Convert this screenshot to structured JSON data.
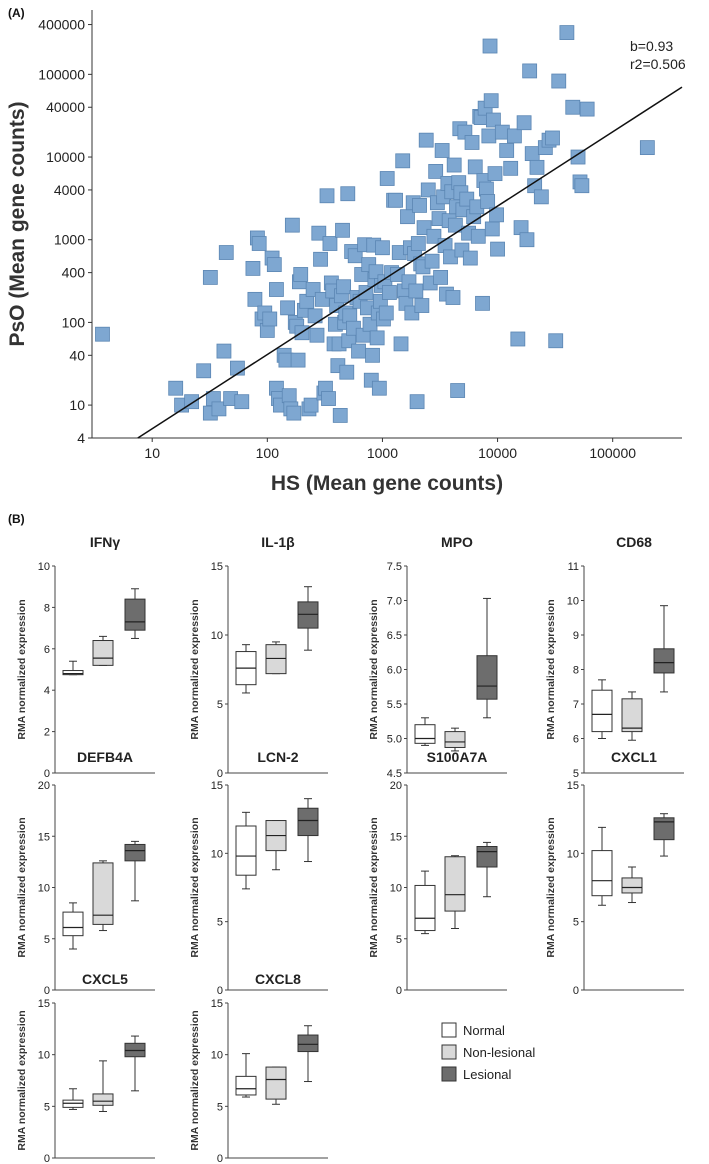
{
  "panel_a_label": "(A)",
  "panel_b_label": "(B)",
  "chart_data": [
    {
      "type": "scatter",
      "xlabel": "HS (Mean gene counts)",
      "ylabel": "PsO (Mean gene counts)",
      "xscale": "log",
      "yscale": "log",
      "xlim": [
        3,
        400000
      ],
      "ylim": [
        4,
        600000
      ],
      "xticks": [
        10,
        100,
        1000,
        10000,
        100000
      ],
      "xtick_labels": [
        "10",
        "100",
        "1000",
        "10000",
        "100000"
      ],
      "yticks": [
        4,
        10,
        40,
        100,
        400,
        1000,
        4000,
        10000,
        40000,
        100000,
        400000
      ],
      "ytick_labels": [
        "4",
        "10",
        "40",
        "100",
        "400",
        "1000",
        "4000",
        "10000",
        "40000",
        "100000",
        "400000"
      ],
      "fit_line": {
        "slope": 0.93,
        "x_start": 7.5,
        "y_start": 4,
        "x_end": 400000,
        "y_end": 70000
      },
      "annotation_lines": [
        "b=0.93",
        "r2=0.506"
      ],
      "marker_color": "#7ea7d1",
      "marker_edge": "#5b86b3",
      "points": [
        [
          3.7,
          72
        ],
        [
          16,
          16
        ],
        [
          18,
          10
        ],
        [
          22,
          11
        ],
        [
          28,
          26
        ],
        [
          32,
          8
        ],
        [
          34,
          12
        ],
        [
          38,
          9
        ],
        [
          42,
          45
        ],
        [
          44,
          700
        ],
        [
          48,
          12
        ],
        [
          55,
          28
        ],
        [
          60,
          11
        ],
        [
          32,
          350
        ],
        [
          75,
          450
        ],
        [
          78,
          190
        ],
        [
          82,
          1050
        ],
        [
          85,
          900
        ],
        [
          90,
          110
        ],
        [
          95,
          130
        ],
        [
          100,
          80
        ],
        [
          105,
          110
        ],
        [
          110,
          600
        ],
        [
          115,
          500
        ],
        [
          120,
          250
        ],
        [
          120,
          16
        ],
        [
          125,
          12
        ],
        [
          130,
          10
        ],
        [
          140,
          40
        ],
        [
          145,
          35
        ],
        [
          150,
          150
        ],
        [
          155,
          13
        ],
        [
          160,
          9
        ],
        [
          165,
          1500
        ],
        [
          170,
          8
        ],
        [
          175,
          100
        ],
        [
          180,
          90
        ],
        [
          185,
          35
        ],
        [
          190,
          310
        ],
        [
          195,
          380
        ],
        [
          200,
          75
        ],
        [
          210,
          140
        ],
        [
          220,
          180
        ],
        [
          230,
          9
        ],
        [
          240,
          10
        ],
        [
          250,
          250
        ],
        [
          260,
          120
        ],
        [
          270,
          70
        ],
        [
          280,
          1200
        ],
        [
          290,
          580
        ],
        [
          300,
          190
        ],
        [
          310,
          14
        ],
        [
          320,
          16
        ],
        [
          330,
          3400
        ],
        [
          340,
          12
        ],
        [
          350,
          900
        ],
        [
          360,
          300
        ],
        [
          370,
          240
        ],
        [
          380,
          55
        ],
        [
          390,
          95
        ],
        [
          400,
          160
        ],
        [
          410,
          30
        ],
        [
          420,
          55
        ],
        [
          430,
          7.5
        ],
        [
          440,
          210
        ],
        [
          450,
          1300
        ],
        [
          460,
          270
        ],
        [
          470,
          100
        ],
        [
          480,
          130
        ],
        [
          490,
          25
        ],
        [
          500,
          3600
        ],
        [
          510,
          60
        ],
        [
          520,
          120
        ],
        [
          540,
          720
        ],
        [
          560,
          85
        ],
        [
          580,
          640
        ],
        [
          600,
          200
        ],
        [
          620,
          45
        ],
        [
          640,
          180
        ],
        [
          660,
          380
        ],
        [
          680,
          70
        ],
        [
          700,
          870
        ],
        [
          720,
          230
        ],
        [
          740,
          150
        ],
        [
          760,
          500
        ],
        [
          780,
          95
        ],
        [
          800,
          20
        ],
        [
          820,
          40
        ],
        [
          840,
          860
        ],
        [
          860,
          330
        ],
        [
          880,
          410
        ],
        [
          900,
          65
        ],
        [
          920,
          130
        ],
        [
          940,
          16
        ],
        [
          960,
          180
        ],
        [
          980,
          280
        ],
        [
          1000,
          800
        ],
        [
          1020,
          110
        ],
        [
          1050,
          310
        ],
        [
          1080,
          130
        ],
        [
          1100,
          5500
        ],
        [
          1150,
          230
        ],
        [
          1200,
          400
        ],
        [
          1250,
          3000
        ],
        [
          1300,
          3000
        ],
        [
          1350,
          380
        ],
        [
          1400,
          700
        ],
        [
          1450,
          55
        ],
        [
          1500,
          9000
        ],
        [
          1550,
          240
        ],
        [
          1600,
          170
        ],
        [
          1650,
          1900
        ],
        [
          1700,
          310
        ],
        [
          1750,
          800
        ],
        [
          1800,
          130
        ],
        [
          1850,
          2800
        ],
        [
          1900,
          680
        ],
        [
          1950,
          240
        ],
        [
          2000,
          11
        ],
        [
          2050,
          900
        ],
        [
          2100,
          2600
        ],
        [
          2150,
          510
        ],
        [
          2200,
          160
        ],
        [
          2250,
          470
        ],
        [
          2300,
          1400
        ],
        [
          2400,
          16000
        ],
        [
          2500,
          4000
        ],
        [
          2600,
          300
        ],
        [
          2700,
          550
        ],
        [
          2800,
          1100
        ],
        [
          2900,
          6700
        ],
        [
          3000,
          2800
        ],
        [
          3100,
          1800
        ],
        [
          3200,
          350
        ],
        [
          3300,
          12000
        ],
        [
          3400,
          3300
        ],
        [
          3500,
          850
        ],
        [
          3600,
          220
        ],
        [
          3700,
          4800
        ],
        [
          3800,
          1700
        ],
        [
          3900,
          620
        ],
        [
          4000,
          3800
        ],
        [
          4100,
          200
        ],
        [
          4200,
          8000
        ],
        [
          4300,
          1500
        ],
        [
          4400,
          2500
        ],
        [
          4500,
          15
        ],
        [
          4600,
          4900
        ],
        [
          4700,
          22000
        ],
        [
          4800,
          3700
        ],
        [
          4900,
          750
        ],
        [
          5000,
          2300
        ],
        [
          5200,
          20000
        ],
        [
          5400,
          3100
        ],
        [
          5600,
          1200
        ],
        [
          5800,
          600
        ],
        [
          6000,
          15000
        ],
        [
          6200,
          1900
        ],
        [
          6400,
          7600
        ],
        [
          6600,
          2500
        ],
        [
          6800,
          1100
        ],
        [
          7000,
          31000
        ],
        [
          7200,
          30000
        ],
        [
          7400,
          170
        ],
        [
          7600,
          5200
        ],
        [
          7800,
          39000
        ],
        [
          8000,
          4100
        ],
        [
          8200,
          2900
        ],
        [
          8400,
          18000
        ],
        [
          8600,
          220000
        ],
        [
          8800,
          48000
        ],
        [
          9000,
          1350
        ],
        [
          9200,
          28000
        ],
        [
          9500,
          6300
        ],
        [
          9800,
          2000
        ],
        [
          10000,
          770
        ],
        [
          11000,
          20000
        ],
        [
          12000,
          12000
        ],
        [
          13000,
          7300
        ],
        [
          14000,
          18000
        ],
        [
          15000,
          63
        ],
        [
          16000,
          1400
        ],
        [
          17000,
          26000
        ],
        [
          18000,
          1000
        ],
        [
          19000,
          110000
        ],
        [
          20000,
          11000
        ],
        [
          21000,
          4500
        ],
        [
          22000,
          7500
        ],
        [
          24000,
          3300
        ],
        [
          26000,
          13000
        ],
        [
          28000,
          16000
        ],
        [
          30000,
          17000
        ],
        [
          32000,
          60
        ],
        [
          34000,
          83000
        ],
        [
          40000,
          320000
        ],
        [
          45000,
          40000
        ],
        [
          50000,
          10000
        ],
        [
          52000,
          5000
        ],
        [
          54000,
          4500
        ],
        [
          60000,
          38000
        ],
        [
          200000,
          13000
        ]
      ]
    },
    {
      "type": "box",
      "title": "IFNγ",
      "ylabel": "RMA normalized expression",
      "ylim": [
        0,
        10
      ],
      "yticks": [
        0,
        2,
        4,
        6,
        8,
        10
      ],
      "boxes": [
        {
          "group": "Normal",
          "min": 4.75,
          "q1": 4.75,
          "median": 4.8,
          "q3": 4.95,
          "max": 5.4
        },
        {
          "group": "Non-lesional",
          "min": 5.2,
          "q1": 5.2,
          "median": 5.55,
          "q3": 6.4,
          "max": 6.6
        },
        {
          "group": "Lesional",
          "min": 6.5,
          "q1": 6.9,
          "median": 7.3,
          "q3": 8.4,
          "max": 8.9
        }
      ]
    },
    {
      "type": "box",
      "title": "IL-1β",
      "ylabel": "RMA normalized expression",
      "ylim": [
        0,
        15
      ],
      "yticks": [
        0,
        5,
        10,
        15
      ],
      "boxes": [
        {
          "group": "Normal",
          "min": 5.8,
          "q1": 6.4,
          "median": 7.6,
          "q3": 8.8,
          "max": 9.3
        },
        {
          "group": "Non-lesional",
          "min": 7.2,
          "q1": 7.2,
          "median": 8.3,
          "q3": 9.3,
          "max": 9.5
        },
        {
          "group": "Lesional",
          "min": 8.9,
          "q1": 10.5,
          "median": 11.5,
          "q3": 12.4,
          "max": 13.5
        }
      ]
    },
    {
      "type": "box",
      "title": "MPO",
      "ylabel": "RMA normalized expression",
      "ylim": [
        4.5,
        7.5
      ],
      "yticks": [
        4.5,
        5.0,
        5.5,
        6.0,
        6.5,
        7.0,
        7.5
      ],
      "ytick_labels": [
        "4.5",
        "5.0",
        "5.5",
        "6.0",
        "6.5",
        "7.0",
        "7.5"
      ],
      "boxes": [
        {
          "group": "Normal",
          "min": 4.9,
          "q1": 4.93,
          "median": 5.0,
          "q3": 5.2,
          "max": 5.3
        },
        {
          "group": "Non-lesional",
          "min": 4.82,
          "q1": 4.87,
          "median": 4.95,
          "q3": 5.1,
          "max": 5.15
        },
        {
          "group": "Lesional",
          "min": 5.3,
          "q1": 5.57,
          "median": 5.76,
          "q3": 6.2,
          "max": 7.03
        }
      ]
    },
    {
      "type": "box",
      "title": "CD68",
      "ylabel": "RMA normalized expression",
      "ylim": [
        5,
        11
      ],
      "yticks": [
        5,
        6,
        7,
        8,
        9,
        10,
        11
      ],
      "boxes": [
        {
          "group": "Normal",
          "min": 6.0,
          "q1": 6.2,
          "median": 6.7,
          "q3": 7.4,
          "max": 7.7
        },
        {
          "group": "Non-lesional",
          "min": 5.95,
          "q1": 6.2,
          "median": 6.3,
          "q3": 7.15,
          "max": 7.35
        },
        {
          "group": "Lesional",
          "min": 7.35,
          "q1": 7.9,
          "median": 8.2,
          "q3": 8.6,
          "max": 9.85
        }
      ]
    },
    {
      "type": "box",
      "title": "DEFB4A",
      "ylabel": "RMA normalized expression",
      "ylim": [
        0,
        20
      ],
      "yticks": [
        0,
        5,
        10,
        15,
        20
      ],
      "boxes": [
        {
          "group": "Normal",
          "min": 4.0,
          "q1": 5.3,
          "median": 6.1,
          "q3": 7.6,
          "max": 8.5
        },
        {
          "group": "Non-lesional",
          "min": 5.8,
          "q1": 6.4,
          "median": 7.3,
          "q3": 12.4,
          "max": 12.6
        },
        {
          "group": "Lesional",
          "min": 8.7,
          "q1": 12.6,
          "median": 13.6,
          "q3": 14.2,
          "max": 14.5
        }
      ]
    },
    {
      "type": "box",
      "title": "LCN-2",
      "ylabel": "RMA normalized expression",
      "ylim": [
        0,
        15
      ],
      "yticks": [
        0,
        5,
        10,
        15
      ],
      "boxes": [
        {
          "group": "Normal",
          "min": 7.4,
          "q1": 8.4,
          "median": 9.8,
          "q3": 12.0,
          "max": 13.0
        },
        {
          "group": "Non-lesional",
          "min": 8.8,
          "q1": 10.2,
          "median": 11.3,
          "q3": 12.4,
          "max": 12.4
        },
        {
          "group": "Lesional",
          "min": 9.4,
          "q1": 11.3,
          "median": 12.4,
          "q3": 13.3,
          "max": 14.0
        }
      ]
    },
    {
      "type": "box",
      "title": "S100A7A",
      "ylabel": "RMA normalized expression",
      "ylim": [
        0,
        20
      ],
      "yticks": [
        0,
        5,
        10,
        15,
        20
      ],
      "boxes": [
        {
          "group": "Normal",
          "min": 5.5,
          "q1": 5.8,
          "median": 7.0,
          "q3": 10.2,
          "max": 11.6
        },
        {
          "group": "Non-lesional",
          "min": 6.0,
          "q1": 7.7,
          "median": 9.3,
          "q3": 13.0,
          "max": 13.1
        },
        {
          "group": "Lesional",
          "min": 9.1,
          "q1": 12.0,
          "median": 13.5,
          "q3": 14.0,
          "max": 14.4
        }
      ]
    },
    {
      "type": "box",
      "title": "CXCL1",
      "ylabel": "RMA normalized expression",
      "ylim": [
        0,
        15
      ],
      "yticks": [
        0,
        5,
        10,
        15
      ],
      "boxes": [
        {
          "group": "Normal",
          "min": 6.2,
          "q1": 6.9,
          "median": 8.0,
          "q3": 10.2,
          "max": 11.9
        },
        {
          "group": "Non-lesional",
          "min": 6.4,
          "q1": 7.1,
          "median": 7.5,
          "q3": 8.2,
          "max": 9.0
        },
        {
          "group": "Lesional",
          "min": 9.8,
          "q1": 11.0,
          "median": 12.3,
          "q3": 12.6,
          "max": 12.9
        }
      ]
    },
    {
      "type": "box",
      "title": "CXCL5",
      "ylabel": "RMA normalized expression",
      "ylim": [
        0,
        15
      ],
      "yticks": [
        0,
        5,
        10,
        15
      ],
      "boxes": [
        {
          "group": "Normal",
          "min": 4.7,
          "q1": 4.9,
          "median": 5.3,
          "q3": 5.6,
          "max": 6.7
        },
        {
          "group": "Non-lesional",
          "min": 4.5,
          "q1": 5.1,
          "median": 5.5,
          "q3": 6.2,
          "max": 9.4
        },
        {
          "group": "Lesional",
          "min": 6.5,
          "q1": 9.8,
          "median": 10.4,
          "q3": 11.1,
          "max": 11.8
        }
      ]
    },
    {
      "type": "box",
      "title": "CXCL8",
      "ylabel": "RMA normalized expression",
      "ylim": [
        0,
        15
      ],
      "yticks": [
        0,
        5,
        10,
        15
      ],
      "boxes": [
        {
          "group": "Normal",
          "min": 5.9,
          "q1": 6.1,
          "median": 6.7,
          "q3": 7.9,
          "max": 10.1
        },
        {
          "group": "Non-lesional",
          "min": 5.2,
          "q1": 5.7,
          "median": 7.6,
          "q3": 8.8,
          "max": 8.8
        },
        {
          "group": "Lesional",
          "min": 7.4,
          "q1": 10.3,
          "median": 11.0,
          "q3": 11.9,
          "max": 12.8
        }
      ]
    }
  ],
  "legend": {
    "items": [
      {
        "label": "Normal",
        "color": "#ffffff"
      },
      {
        "label": "Non-lesional",
        "color": "#d9d9d9"
      },
      {
        "label": "Lesional",
        "color": "#6d6d6d"
      }
    ]
  },
  "group_colors": {
    "Normal": "#ffffff",
    "Non-lesional": "#d9d9d9",
    "Lesional": "#6d6d6d"
  }
}
